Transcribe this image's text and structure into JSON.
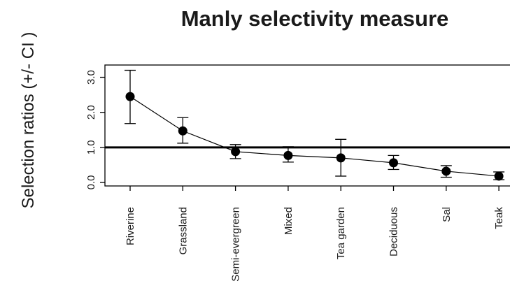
{
  "chart_data": {
    "type": "scatter",
    "title": "Manly selectivity measure",
    "ylabel": "Selection ratios (+/- CI )",
    "xlabel": "",
    "categories": [
      "Riverine",
      "Grassland",
      "Semi-evergreen",
      "Mixed",
      "Tea garden",
      "Deciduous",
      "Sal",
      "Teak"
    ],
    "series": [
      {
        "values": [
          2.45,
          1.47,
          0.88,
          0.77,
          0.7,
          0.56,
          0.32,
          0.18
        ],
        "ci_lower": [
          1.68,
          1.12,
          0.68,
          0.58,
          0.18,
          0.37,
          0.15,
          0.08
        ],
        "ci_upper": [
          3.2,
          1.85,
          1.08,
          1.02,
          1.23,
          0.77,
          0.48,
          0.3
        ]
      }
    ],
    "reference_line": 1.0,
    "yticks": [
      "0.0",
      "1.0",
      "2.0",
      "3.0"
    ],
    "ylim": [
      -0.1,
      3.35
    ],
    "grid": false,
    "marker": "filled-circle",
    "connected": true,
    "colors": {
      "points": "#000000",
      "axes": "#000000",
      "background": "#ffffff"
    }
  }
}
